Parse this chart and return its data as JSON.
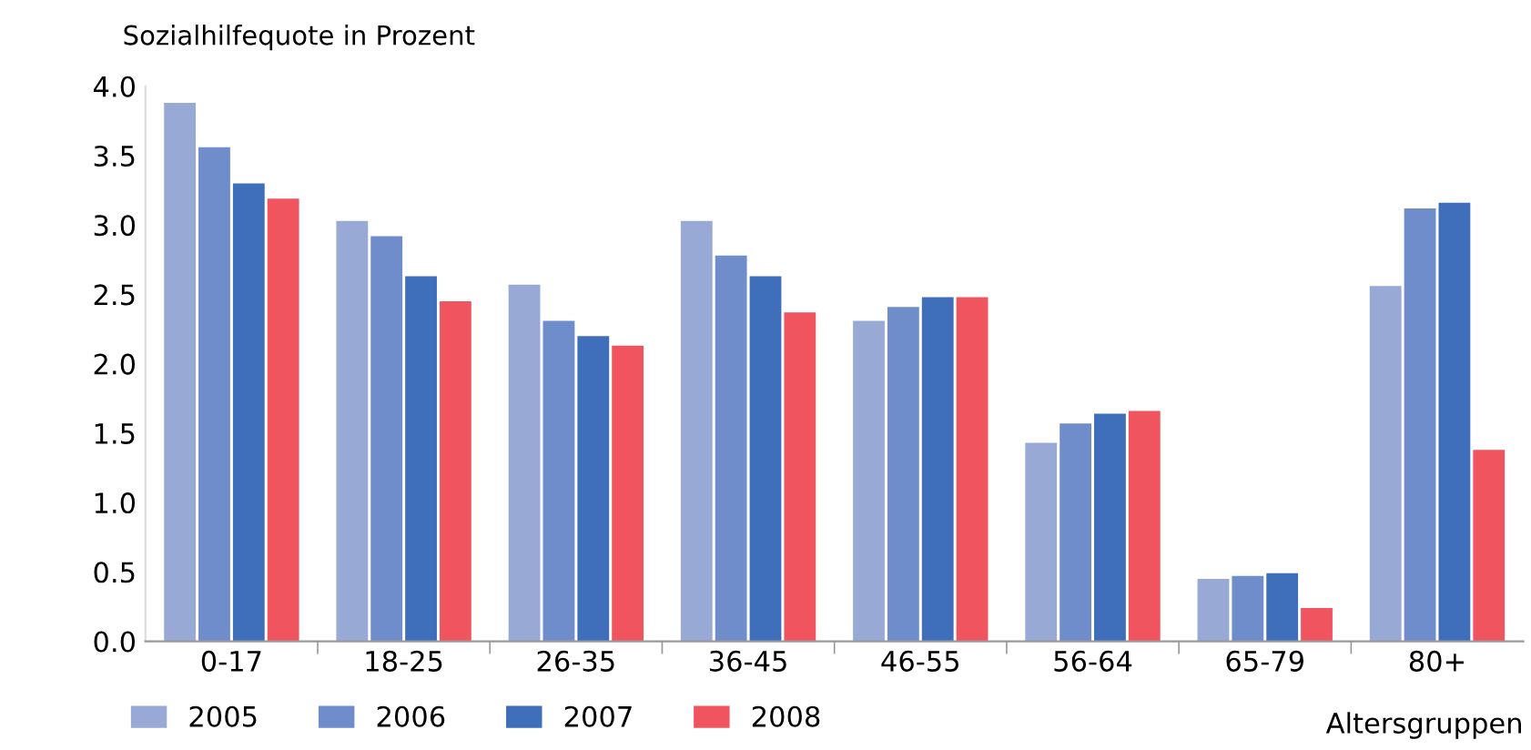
{
  "chart_data": {
    "type": "bar",
    "ylabel": "Sozialhilfequote in Prozent",
    "xlabel": "Altersgruppen",
    "categories": [
      "0-17",
      "18-25",
      "26-35",
      "36-45",
      "46-55",
      "56-64",
      "65-79",
      "80+"
    ],
    "series": [
      {
        "name": "2005",
        "color": "#99a9d6",
        "values": [
          3.88,
          3.03,
          2.57,
          3.03,
          2.31,
          1.43,
          0.45,
          2.56
        ]
      },
      {
        "name": "2006",
        "color": "#6f8ccb",
        "values": [
          3.56,
          2.92,
          2.31,
          2.78,
          2.41,
          1.57,
          0.47,
          3.12
        ]
      },
      {
        "name": "2007",
        "color": "#3f6fba",
        "values": [
          3.3,
          2.63,
          2.2,
          2.63,
          2.48,
          1.64,
          0.49,
          3.16
        ]
      },
      {
        "name": "2008",
        "color": "#f0555f",
        "values": [
          3.19,
          2.45,
          2.13,
          2.37,
          2.48,
          1.66,
          0.24,
          1.38
        ]
      }
    ],
    "ylim": [
      0,
      4
    ],
    "yticks": [
      {
        "value": 0,
        "label": "0.0"
      },
      {
        "value": 0.5,
        "label": "0.5"
      },
      {
        "value": 1,
        "label": "1.0"
      },
      {
        "value": 1.5,
        "label": "1.5"
      },
      {
        "value": 2,
        "label": "2.0"
      },
      {
        "value": 2.5,
        "label": "2.5"
      },
      {
        "value": 3,
        "label": "3.0"
      },
      {
        "value": 3.5,
        "label": "3.5"
      },
      {
        "value": 4,
        "label": "4.0"
      }
    ],
    "grid": false,
    "legend": "bottom left"
  }
}
